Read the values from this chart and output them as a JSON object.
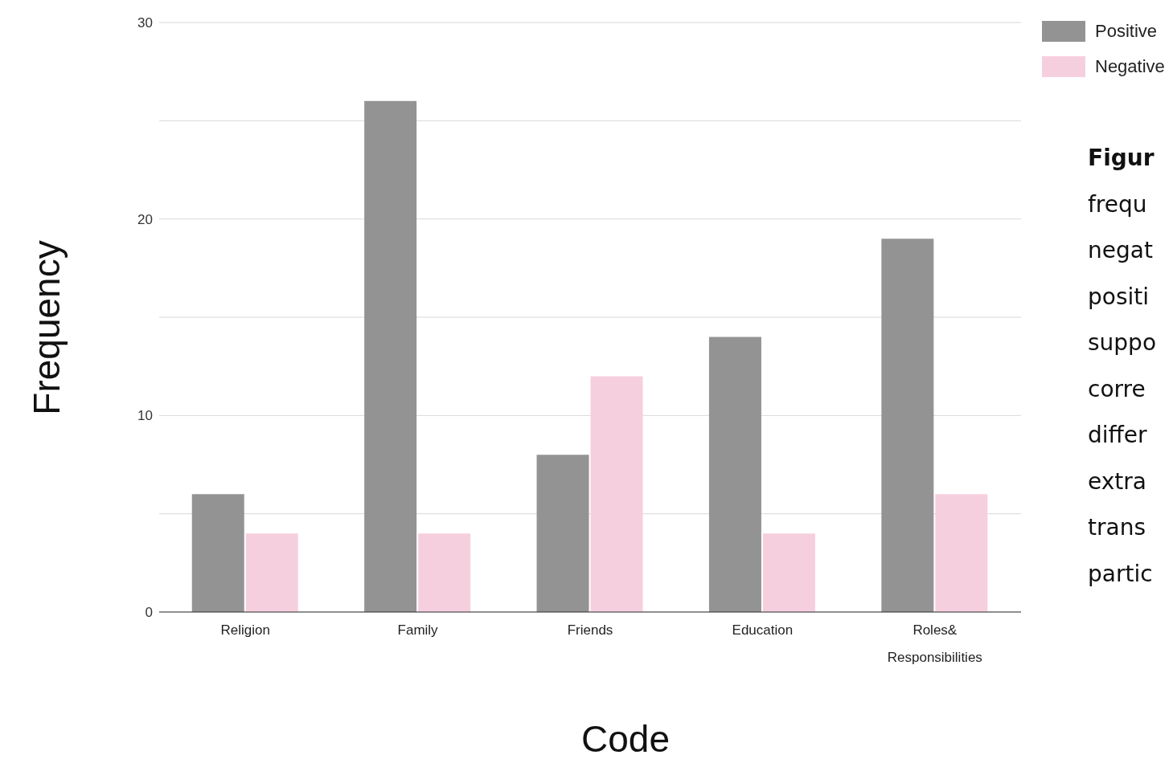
{
  "chart_data": {
    "type": "bar",
    "xlabel": "Code",
    "ylabel": "Frequency",
    "categories": [
      "Religion",
      "Family",
      "Friends",
      "Education",
      "Roles& Responsibilities"
    ],
    "series": [
      {
        "name": "Positive",
        "color": "#939393",
        "values": [
          6,
          26,
          8,
          14,
          19
        ]
      },
      {
        "name": "Negative",
        "color": "#f6cfdf",
        "values": [
          4,
          4,
          12,
          4,
          6
        ]
      }
    ],
    "ylim": [
      0,
      30
    ],
    "yticks": [
      0,
      {
        "value": 5,
        "label": null
      },
      10,
      {
        "value": 15,
        "label": null
      },
      20,
      {
        "value": 25,
        "label": null
      },
      30
    ],
    "grid": "y",
    "legend": "top right",
    "annotations": [
      "Figur",
      "frequ",
      "negat",
      "positi",
      "suppo",
      "corre",
      "differ",
      "extra",
      "trans",
      "partic"
    ]
  }
}
